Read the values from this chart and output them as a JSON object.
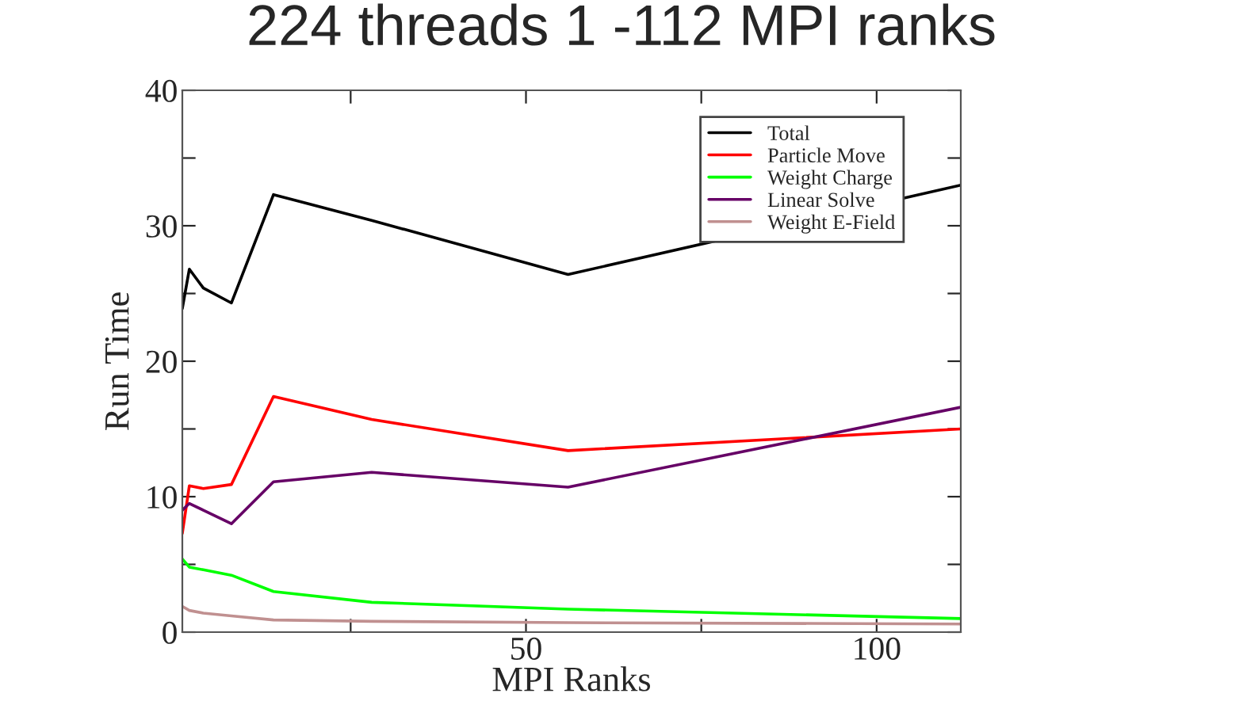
{
  "chart_data": {
    "type": "line",
    "title": "224 threads 1 -112 MPI ranks",
    "xlabel": "MPI Ranks",
    "ylabel": "Run Time",
    "x": [
      1,
      2,
      4,
      8,
      14,
      28,
      56,
      112
    ],
    "xlim": [
      1,
      112
    ],
    "xticks": [
      {
        "value": 25,
        "label": null
      },
      50,
      {
        "value": 75,
        "label": null
      },
      100
    ],
    "ylim": [
      0,
      40
    ],
    "yticks": [
      0,
      {
        "value": 5,
        "label": null
      },
      10,
      {
        "value": 15,
        "label": null
      },
      20,
      {
        "value": 25,
        "label": null
      },
      30,
      {
        "value": 35,
        "label": null
      },
      40
    ],
    "grid": false,
    "legend": "top right",
    "marker": "none",
    "line_style": "solid",
    "series": [
      {
        "name": "Total",
        "color": "#000000",
        "values": [
          23.9,
          26.8,
          25.4,
          24.3,
          32.3,
          30.4,
          26.4,
          33.0
        ]
      },
      {
        "name": "Particle Move",
        "color": "#ff0000",
        "values": [
          7.3,
          10.8,
          10.6,
          10.9,
          17.4,
          15.7,
          13.4,
          15.0
        ]
      },
      {
        "name": "Weight Charge",
        "color": "#00ff00",
        "values": [
          5.4,
          4.8,
          4.6,
          4.2,
          3.0,
          2.2,
          1.7,
          1.0
        ]
      },
      {
        "name": "Linear Solve",
        "color": "#660066",
        "values": [
          9.0,
          9.5,
          9.0,
          8.0,
          11.1,
          11.8,
          10.7,
          16.6
        ]
      },
      {
        "name": "Weight E-Field",
        "color": "#c09090",
        "values": [
          1.9,
          1.6,
          1.4,
          1.2,
          0.9,
          0.8,
          0.7,
          0.6
        ]
      }
    ]
  }
}
